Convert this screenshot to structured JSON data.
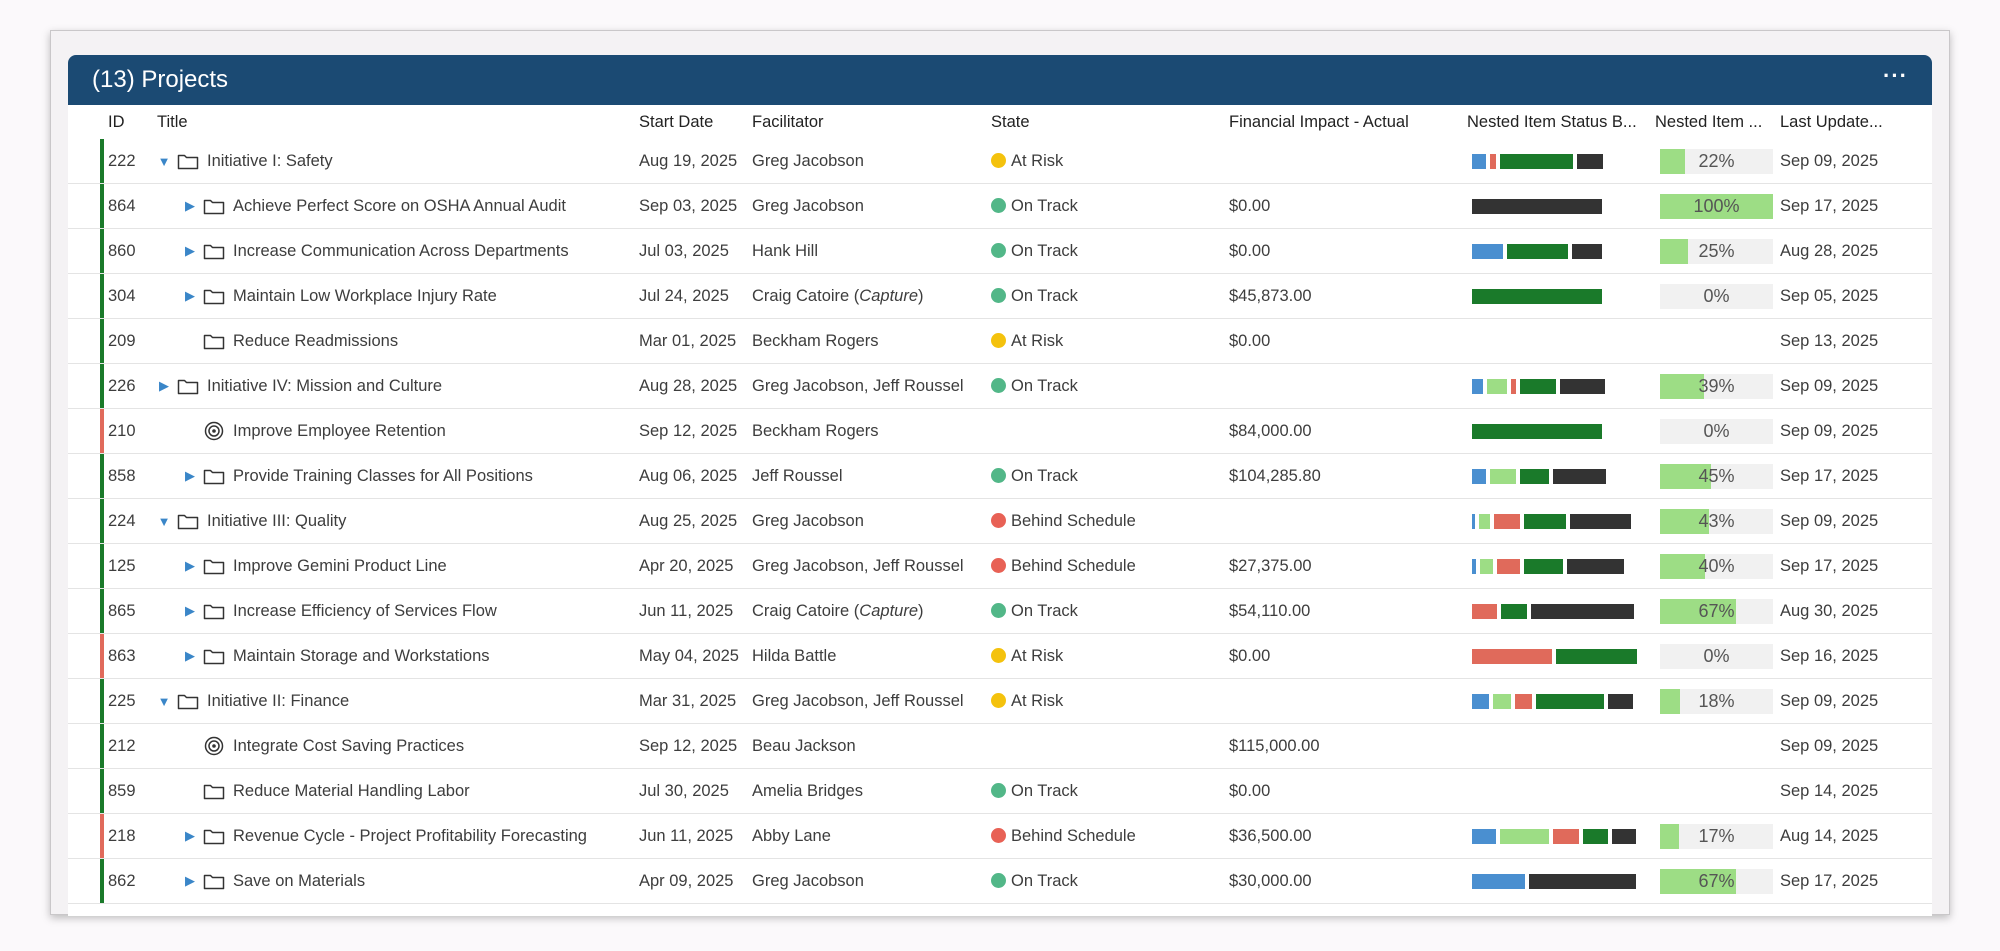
{
  "widget": {
    "title": "(13) Projects",
    "menu_label": "···"
  },
  "colors": {
    "on_track": "#52b788",
    "at_risk": "#f4c20d",
    "behind": "#e86155",
    "stripe_green": "#1a7a2a",
    "stripe_red": "#e06a5b",
    "seg_blue": "#4a8fd0",
    "seg_lightgreen": "#9ddd85",
    "seg_red": "#e06a5b",
    "seg_green": "#1a7a2a",
    "seg_dark": "#333333"
  },
  "columns": [
    "ID",
    "Title",
    "Start Date",
    "Facilitator",
    "State",
    "Financial Impact - Actual",
    "Nested Item Status B...",
    "Nested Item ...",
    "Last Update..."
  ],
  "rows": [
    {
      "id": "222",
      "indent": 0,
      "caret": "down",
      "icon": "folder",
      "title": "Initiative I: Safety",
      "start": "Aug 19, 2025",
      "facilitator": "Greg Jacobson",
      "state": "At Risk",
      "state_key": "at_risk",
      "financial": "",
      "segments": [
        [
          "seg_blue",
          14
        ],
        [
          "seg_red",
          6
        ],
        [
          "seg_green",
          73
        ],
        [
          "seg_dark",
          26
        ]
      ],
      "pct": 22,
      "pct_label": "22%",
      "last": "Sep 09, 2025",
      "stripe": "stripe_green"
    },
    {
      "id": "864",
      "indent": 1,
      "caret": "right",
      "icon": "folder",
      "title": "Achieve Perfect Score on OSHA Annual Audit",
      "start": "Sep 03, 2025",
      "facilitator": "Greg Jacobson",
      "state": "On Track",
      "state_key": "on_track",
      "financial": "$0.00",
      "segments": [
        [
          "seg_dark",
          130
        ]
      ],
      "pct": 100,
      "pct_label": "100%",
      "last": "Sep 17, 2025",
      "stripe": "stripe_green"
    },
    {
      "id": "860",
      "indent": 1,
      "caret": "right",
      "icon": "folder",
      "title": "Increase Communication Across Departments",
      "start": "Jul 03, 2025",
      "facilitator": "Hank Hill",
      "state": "On Track",
      "state_key": "on_track",
      "financial": "$0.00",
      "segments": [
        [
          "seg_blue",
          31
        ],
        [
          "seg_green",
          61
        ],
        [
          "seg_dark",
          30
        ]
      ],
      "pct": 25,
      "pct_label": "25%",
      "last": "Aug 28, 2025",
      "stripe": "stripe_green"
    },
    {
      "id": "304",
      "indent": 1,
      "caret": "right",
      "icon": "folder",
      "title": "Maintain Low Workplace Injury Rate",
      "start": "Jul 24, 2025",
      "facilitator": "Craig Catoire (",
      "facilitator_italic": "Capture",
      "facilitator_tail": ")",
      "state": "On Track",
      "state_key": "on_track",
      "financial": "$45,873.00",
      "segments": [
        [
          "seg_green",
          130
        ]
      ],
      "pct": 0,
      "pct_label": "0%",
      "last": "Sep 05, 2025",
      "stripe": "stripe_green"
    },
    {
      "id": "209",
      "indent": 1,
      "caret": "none",
      "icon": "folder",
      "title": "Reduce Readmissions",
      "start": "Mar 01, 2025",
      "facilitator": "Beckham Rogers",
      "state": "At Risk",
      "state_key": "at_risk",
      "financial": "$0.00",
      "segments": [],
      "pct": null,
      "pct_label": "",
      "last": "Sep 13, 2025",
      "stripe": "stripe_green"
    },
    {
      "id": "226",
      "indent": 0,
      "caret": "right",
      "icon": "folder",
      "title": "Initiative IV: Mission and Culture",
      "start": "Aug 28, 2025",
      "facilitator": "Greg Jacobson, Jeff Roussel",
      "state": "On Track",
      "state_key": "on_track",
      "financial": "",
      "segments": [
        [
          "seg_blue",
          11
        ],
        [
          "seg_lightgreen",
          20
        ],
        [
          "seg_red",
          5
        ],
        [
          "seg_green",
          36
        ],
        [
          "seg_dark",
          45
        ]
      ],
      "pct": 39,
      "pct_label": "39%",
      "last": "Sep 09, 2025",
      "stripe": "stripe_green"
    },
    {
      "id": "210",
      "indent": 1,
      "caret": "none",
      "icon": "target",
      "title": "Improve Employee Retention",
      "start": "Sep 12, 2025",
      "facilitator": "Beckham Rogers",
      "state": "",
      "state_key": "",
      "financial": "$84,000.00",
      "segments": [
        [
          "seg_green",
          130
        ]
      ],
      "pct": 0,
      "pct_label": "0%",
      "last": "Sep 09, 2025",
      "stripe": "stripe_red"
    },
    {
      "id": "858",
      "indent": 1,
      "caret": "right",
      "icon": "folder",
      "title": "Provide Training Classes for All Positions",
      "start": "Aug 06, 2025",
      "facilitator": "Jeff Roussel",
      "state": "On Track",
      "state_key": "on_track",
      "financial": "$104,285.80",
      "segments": [
        [
          "seg_blue",
          14
        ],
        [
          "seg_lightgreen",
          26
        ],
        [
          "seg_green",
          29
        ],
        [
          "seg_dark",
          53
        ]
      ],
      "pct": 45,
      "pct_label": "45%",
      "last": "Sep 17, 2025",
      "stripe": "stripe_green"
    },
    {
      "id": "224",
      "indent": 0,
      "caret": "down",
      "icon": "folder",
      "title": "Initiative III: Quality",
      "start": "Aug 25, 2025",
      "facilitator": "Greg Jacobson",
      "state": "Behind Schedule",
      "state_key": "behind",
      "financial": "",
      "segments": [
        [
          "seg_blue",
          3
        ],
        [
          "seg_lightgreen",
          11
        ],
        [
          "seg_red",
          26
        ],
        [
          "seg_green",
          42
        ],
        [
          "seg_dark",
          61
        ]
      ],
      "pct": 43,
      "pct_label": "43%",
      "last": "Sep 09, 2025",
      "stripe": "stripe_green"
    },
    {
      "id": "125",
      "indent": 1,
      "caret": "right",
      "icon": "folder",
      "title": "Improve Gemini Product Line",
      "start": "Apr 20, 2025",
      "facilitator": "Greg Jacobson, Jeff Roussel",
      "state": "Behind Schedule",
      "state_key": "behind",
      "financial": "$27,375.00",
      "segments": [
        [
          "seg_blue",
          4
        ],
        [
          "seg_lightgreen",
          13
        ],
        [
          "seg_red",
          23
        ],
        [
          "seg_green",
          39
        ],
        [
          "seg_dark",
          57
        ]
      ],
      "pct": 40,
      "pct_label": "40%",
      "last": "Sep 17, 2025",
      "stripe": "stripe_green"
    },
    {
      "id": "865",
      "indent": 1,
      "caret": "right",
      "icon": "folder",
      "title": "Increase Efficiency of Services Flow",
      "start": "Jun 11, 2025",
      "facilitator": "Craig Catoire (",
      "facilitator_italic": "Capture",
      "facilitator_tail": ")",
      "state": "On Track",
      "state_key": "on_track",
      "financial": "$54,110.00",
      "segments": [
        [
          "seg_red",
          25
        ],
        [
          "seg_green",
          26
        ],
        [
          "seg_dark",
          103
        ]
      ],
      "pct": 67,
      "pct_label": "67%",
      "last": "Aug 30, 2025",
      "stripe": "stripe_green"
    },
    {
      "id": "863",
      "indent": 1,
      "caret": "right",
      "icon": "folder",
      "title": "Maintain Storage and Workstations",
      "start": "May 04, 2025",
      "facilitator": "Hilda Battle",
      "state": "At Risk",
      "state_key": "at_risk",
      "financial": "$0.00",
      "segments": [
        [
          "seg_red",
          80
        ],
        [
          "seg_green",
          81
        ]
      ],
      "pct": 0,
      "pct_label": "0%",
      "last": "Sep 16, 2025",
      "stripe": "stripe_red"
    },
    {
      "id": "225",
      "indent": 0,
      "caret": "down",
      "icon": "folder",
      "title": "Initiative II: Finance",
      "start": "Mar 31, 2025",
      "facilitator": "Greg Jacobson, Jeff Roussel",
      "state": "At Risk",
      "state_key": "at_risk",
      "financial": "",
      "segments": [
        [
          "seg_blue",
          17
        ],
        [
          "seg_lightgreen",
          18
        ],
        [
          "seg_red",
          17
        ],
        [
          "seg_green",
          68
        ],
        [
          "seg_dark",
          25
        ]
      ],
      "pct": 18,
      "pct_label": "18%",
      "last": "Sep 09, 2025",
      "stripe": "stripe_green"
    },
    {
      "id": "212",
      "indent": 1,
      "caret": "none",
      "icon": "target",
      "title": "Integrate Cost Saving Practices",
      "start": "Sep 12, 2025",
      "facilitator": "Beau Jackson",
      "state": "",
      "state_key": "",
      "financial": "$115,000.00",
      "segments": [],
      "pct": null,
      "pct_label": "",
      "last": "Sep 09, 2025",
      "stripe": "stripe_green"
    },
    {
      "id": "859",
      "indent": 1,
      "caret": "none",
      "icon": "folder",
      "title": "Reduce Material Handling Labor",
      "start": "Jul 30, 2025",
      "facilitator": "Amelia Bridges",
      "state": "On Track",
      "state_key": "on_track",
      "financial": "$0.00",
      "segments": [],
      "pct": null,
      "pct_label": "",
      "last": "Sep 14, 2025",
      "stripe": "stripe_green"
    },
    {
      "id": "218",
      "indent": 1,
      "caret": "right",
      "icon": "folder",
      "title": "Revenue Cycle - Project Profitability Forecasting",
      "start": "Jun 11, 2025",
      "facilitator": "Abby Lane",
      "state": "Behind Schedule",
      "state_key": "behind",
      "financial": "$36,500.00",
      "segments": [
        [
          "seg_blue",
          24
        ],
        [
          "seg_lightgreen",
          49
        ],
        [
          "seg_red",
          26
        ],
        [
          "seg_green",
          25
        ],
        [
          "seg_dark",
          24
        ]
      ],
      "pct": 17,
      "pct_label": "17%",
      "last": "Aug 14, 2025",
      "stripe": "stripe_red"
    },
    {
      "id": "862",
      "indent": 1,
      "caret": "right",
      "icon": "folder",
      "title": "Save on Materials",
      "start": "Apr 09, 2025",
      "facilitator": "Greg Jacobson",
      "state": "On Track",
      "state_key": "on_track",
      "financial": "$30,000.00",
      "segments": [
        [
          "seg_blue",
          53
        ],
        [
          "seg_dark",
          107
        ]
      ],
      "pct": 67,
      "pct_label": "67%",
      "last": "Sep 17, 2025",
      "stripe": "stripe_green"
    }
  ]
}
